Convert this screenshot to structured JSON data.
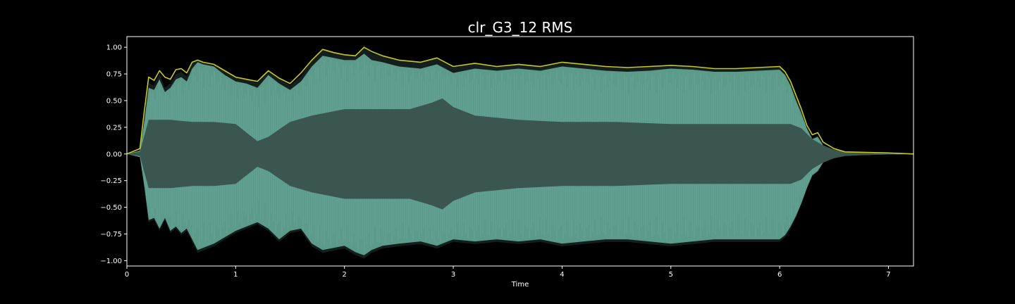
{
  "chart_data": {
    "type": "area",
    "title": "clr_G3_12 RMS",
    "xlabel": "Time",
    "ylabel": "",
    "xlim": [
      0,
      7.23
    ],
    "ylim": [
      -1.05,
      1.1
    ],
    "xticks": [
      0,
      1,
      2,
      3,
      4,
      5,
      6,
      7
    ],
    "xtick_labels": [
      "0",
      "1",
      "2",
      "3",
      "4",
      "5",
      "6",
      "7"
    ],
    "yticks": [
      -1.0,
      -0.75,
      -0.5,
      -0.25,
      0.0,
      0.25,
      0.5,
      0.75,
      1.0
    ],
    "ytick_labels": [
      "−1.00",
      "−0.75",
      "−0.50",
      "−0.25",
      "0.00",
      "0.25",
      "0.50",
      "0.75",
      "1.00"
    ],
    "grid": false,
    "colors": {
      "background": "#000000",
      "axes_edge": "#ffffff",
      "text": "#ffffff",
      "waveform_outer": "#5c9a8a",
      "waveform_inner": "#3a564f",
      "rms_line": "#c8c822",
      "waveform_dark_edge": "#141e1c"
    },
    "series": [
      {
        "name": "rms_envelope",
        "kind": "line",
        "x": [
          0.0,
          0.12,
          0.16,
          0.2,
          0.25,
          0.3,
          0.35,
          0.4,
          0.45,
          0.5,
          0.55,
          0.6,
          0.65,
          0.7,
          0.8,
          0.9,
          1.0,
          1.1,
          1.2,
          1.3,
          1.4,
          1.5,
          1.6,
          1.7,
          1.8,
          1.9,
          2.0,
          2.1,
          2.18,
          2.25,
          2.35,
          2.5,
          2.7,
          2.85,
          3.0,
          3.2,
          3.4,
          3.6,
          3.8,
          4.0,
          4.2,
          4.4,
          4.6,
          4.8,
          5.0,
          5.2,
          5.4,
          5.6,
          5.8,
          6.0,
          6.05,
          6.1,
          6.15,
          6.2,
          6.25,
          6.3,
          6.35,
          6.4,
          6.5,
          6.6,
          6.8,
          7.0,
          7.23
        ],
        "y": [
          0.0,
          0.05,
          0.4,
          0.72,
          0.69,
          0.78,
          0.72,
          0.7,
          0.79,
          0.8,
          0.76,
          0.86,
          0.88,
          0.86,
          0.84,
          0.78,
          0.72,
          0.7,
          0.68,
          0.78,
          0.71,
          0.66,
          0.76,
          0.88,
          0.98,
          0.95,
          0.93,
          0.92,
          1.0,
          0.96,
          0.92,
          0.88,
          0.86,
          0.9,
          0.82,
          0.85,
          0.82,
          0.84,
          0.82,
          0.86,
          0.84,
          0.82,
          0.81,
          0.82,
          0.83,
          0.82,
          0.8,
          0.8,
          0.81,
          0.82,
          0.77,
          0.68,
          0.55,
          0.42,
          0.27,
          0.18,
          0.2,
          0.11,
          0.05,
          0.02,
          0.015,
          0.01,
          0.0
        ]
      },
      {
        "name": "waveform_upper",
        "kind": "area",
        "x": [
          0.0,
          0.12,
          0.16,
          0.2,
          0.25,
          0.3,
          0.35,
          0.4,
          0.45,
          0.5,
          0.55,
          0.6,
          0.65,
          0.7,
          0.8,
          0.9,
          1.0,
          1.1,
          1.2,
          1.3,
          1.4,
          1.5,
          1.6,
          1.7,
          1.8,
          1.9,
          2.0,
          2.1,
          2.18,
          2.25,
          2.35,
          2.5,
          2.7,
          2.85,
          3.0,
          3.2,
          3.4,
          3.6,
          3.8,
          4.0,
          4.2,
          4.4,
          4.6,
          4.8,
          5.0,
          5.2,
          5.4,
          5.6,
          5.8,
          6.0,
          6.05,
          6.1,
          6.15,
          6.2,
          6.25,
          6.3,
          6.35,
          6.4,
          6.5,
          6.6,
          6.8,
          7.0,
          7.23
        ],
        "y": [
          0.0,
          0.03,
          0.3,
          0.62,
          0.6,
          0.7,
          0.58,
          0.62,
          0.7,
          0.72,
          0.68,
          0.8,
          0.86,
          0.84,
          0.82,
          0.74,
          0.68,
          0.66,
          0.62,
          0.74,
          0.66,
          0.6,
          0.68,
          0.82,
          0.92,
          0.9,
          0.88,
          0.88,
          0.94,
          0.88,
          0.86,
          0.82,
          0.8,
          0.84,
          0.76,
          0.8,
          0.78,
          0.8,
          0.78,
          0.82,
          0.8,
          0.78,
          0.77,
          0.78,
          0.8,
          0.79,
          0.77,
          0.77,
          0.78,
          0.79,
          0.74,
          0.64,
          0.5,
          0.38,
          0.24,
          0.14,
          0.16,
          0.08,
          0.03,
          0.015,
          0.01,
          0.005,
          0.0
        ]
      },
      {
        "name": "waveform_lower",
        "kind": "area",
        "x": [
          0.0,
          0.12,
          0.16,
          0.2,
          0.25,
          0.3,
          0.35,
          0.4,
          0.45,
          0.5,
          0.55,
          0.6,
          0.65,
          0.7,
          0.8,
          0.9,
          1.0,
          1.1,
          1.2,
          1.3,
          1.4,
          1.5,
          1.6,
          1.7,
          1.8,
          1.9,
          2.0,
          2.1,
          2.18,
          2.25,
          2.35,
          2.5,
          2.7,
          2.85,
          3.0,
          3.2,
          3.4,
          3.6,
          3.8,
          4.0,
          4.2,
          4.4,
          4.6,
          4.8,
          5.0,
          5.2,
          5.4,
          5.6,
          5.8,
          6.0,
          6.05,
          6.1,
          6.15,
          6.2,
          6.25,
          6.3,
          6.35,
          6.4,
          6.5,
          6.6,
          6.8,
          7.0,
          7.23
        ],
        "y": [
          0.0,
          -0.03,
          -0.3,
          -0.62,
          -0.6,
          -0.7,
          -0.6,
          -0.72,
          -0.68,
          -0.74,
          -0.7,
          -0.8,
          -0.9,
          -0.88,
          -0.84,
          -0.78,
          -0.72,
          -0.68,
          -0.64,
          -0.7,
          -0.8,
          -0.72,
          -0.7,
          -0.84,
          -0.9,
          -0.88,
          -0.86,
          -0.92,
          -0.95,
          -0.9,
          -0.86,
          -0.84,
          -0.82,
          -0.86,
          -0.8,
          -0.82,
          -0.8,
          -0.82,
          -0.8,
          -0.84,
          -0.82,
          -0.8,
          -0.8,
          -0.82,
          -0.84,
          -0.82,
          -0.8,
          -0.8,
          -0.8,
          -0.8,
          -0.76,
          -0.68,
          -0.58,
          -0.46,
          -0.32,
          -0.2,
          -0.16,
          -0.08,
          -0.03,
          -0.015,
          -0.01,
          -0.005,
          0.0
        ]
      },
      {
        "name": "waveform_core",
        "kind": "band",
        "x": [
          0.0,
          0.12,
          0.2,
          0.4,
          0.6,
          0.8,
          1.0,
          1.1,
          1.2,
          1.3,
          1.5,
          1.7,
          2.0,
          2.3,
          2.6,
          2.8,
          2.9,
          3.0,
          3.2,
          3.6,
          4.0,
          4.5,
          5.0,
          5.5,
          5.8,
          6.0,
          6.1,
          6.2,
          6.3,
          6.4,
          6.5,
          6.6,
          6.8,
          7.0,
          7.23
        ],
        "y": [
          0.0,
          0.02,
          0.32,
          0.32,
          0.3,
          0.3,
          0.28,
          0.2,
          0.12,
          0.16,
          0.3,
          0.36,
          0.42,
          0.42,
          0.42,
          0.48,
          0.52,
          0.44,
          0.36,
          0.32,
          0.3,
          0.3,
          0.28,
          0.28,
          0.28,
          0.28,
          0.28,
          0.24,
          0.14,
          0.08,
          0.04,
          0.02,
          0.01,
          0.005,
          0.0
        ]
      }
    ]
  }
}
